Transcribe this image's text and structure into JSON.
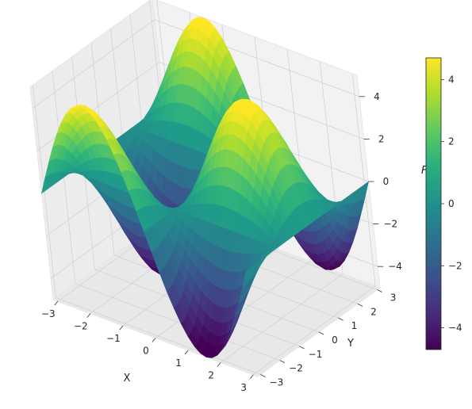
{
  "chart_data": {
    "type": "surface",
    "function": "F",
    "xlabel": "X",
    "ylabel": "Y",
    "zlabel": "F",
    "x_range": [
      -3.14,
      3.14
    ],
    "y_range": [
      -3.14,
      3.14
    ],
    "z_range": [
      -5,
      5
    ],
    "x_ticks": [
      "−3",
      "−2",
      "−1",
      "0",
      "1",
      "2",
      "3"
    ],
    "y_ticks": [
      "−3",
      "−2",
      "−1",
      "0",
      "1",
      "2",
      "3"
    ],
    "z_ticks": [
      "−4",
      "−2",
      "0",
      "2",
      "4"
    ],
    "colorbar": {
      "colormap": "viridis",
      "min": -4.7,
      "max": 4.7,
      "ticks": [
        "−4",
        "−2",
        "0",
        "2",
        "4"
      ]
    },
    "grid": true
  }
}
